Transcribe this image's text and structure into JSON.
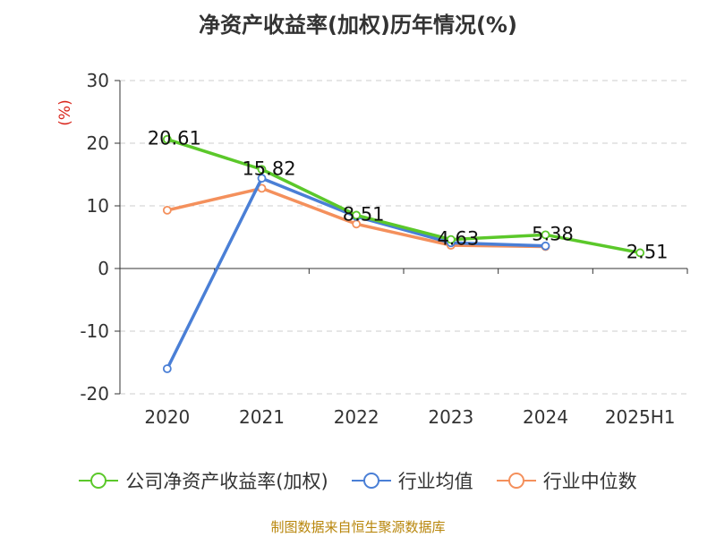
{
  "chart_data": {
    "type": "line",
    "title": "净资产收益率(加权)历年情况(%)",
    "ylabel": "(%)",
    "categories": [
      "2020",
      "2021",
      "2022",
      "2023",
      "2024",
      "2025H1"
    ],
    "ylim": [
      -20,
      30
    ],
    "yticks": [
      30,
      20,
      10,
      0,
      -10,
      -20
    ],
    "grid": true,
    "legend_position": "bottom",
    "series": [
      {
        "name": "公司净资产收益率(加权)",
        "color": "#5bc82a",
        "values": [
          20.61,
          15.82,
          8.51,
          4.63,
          5.38,
          2.51
        ],
        "labels": [
          "20.61",
          "15.82",
          "8.51",
          "4.63",
          "5.38",
          "2.51"
        ]
      },
      {
        "name": "行业均值",
        "color": "#4a7fd6",
        "values": [
          -16.0,
          14.4,
          8.3,
          4.1,
          3.6,
          null
        ]
      },
      {
        "name": "行业中位数",
        "color": "#f4905c",
        "values": [
          9.3,
          12.8,
          7.1,
          3.7,
          3.5,
          null
        ]
      }
    ]
  },
  "footer": {
    "source": "制图数据来自恒生聚源数据库"
  }
}
